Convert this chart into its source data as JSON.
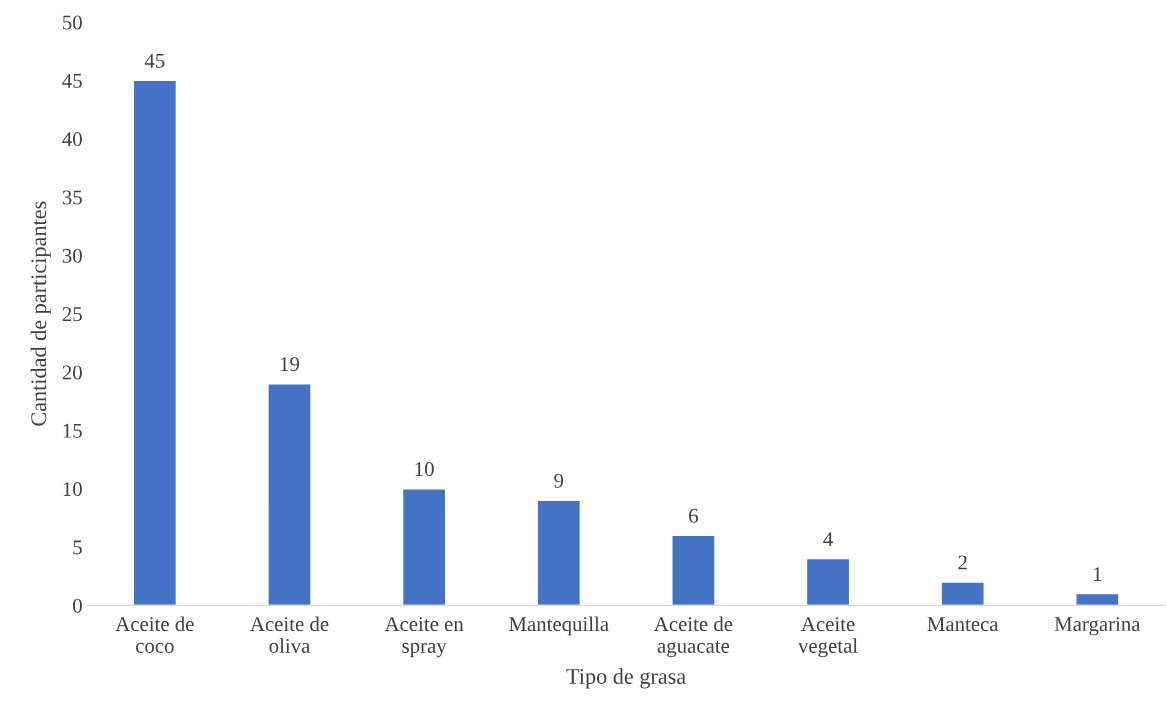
{
  "chart_data": {
    "type": "bar",
    "xlabel": "Tipo de grasa",
    "ylabel": "Cantidad de participantes",
    "categories": [
      "Aceite de\ncoco",
      "Aceite de\noliva",
      "Aceite en\nspray",
      "Mantequilla",
      "Aceite de\naguacate",
      "Aceite\nvegetal",
      "Manteca",
      "Margarina"
    ],
    "values": [
      45,
      19,
      10,
      9,
      6,
      4,
      2,
      1
    ],
    "color": "#4472c4",
    "ylim": [
      0,
      50
    ],
    "yticks": [
      0,
      5,
      10,
      15,
      20,
      25,
      30,
      35,
      40,
      45,
      50
    ],
    "grid": false,
    "data_labels": true
  }
}
